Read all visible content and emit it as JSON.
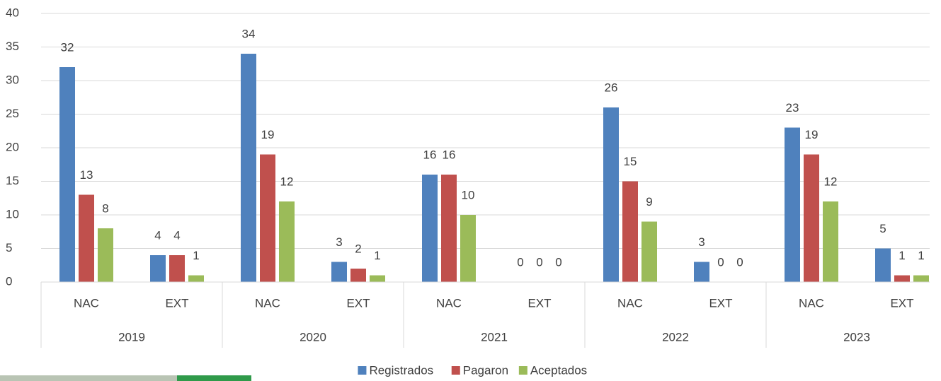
{
  "chart_data": {
    "type": "bar",
    "categories": [
      "NAC",
      "EXT",
      "NAC",
      "EXT",
      "NAC",
      "EXT",
      "NAC",
      "EXT",
      "NAC",
      "EXT"
    ],
    "groups": [
      "2019",
      "2020",
      "2021",
      "2022",
      "2023"
    ],
    "series": [
      {
        "name": "Registrados",
        "color": "#4f81bd",
        "values": [
          32,
          4,
          34,
          3,
          16,
          0,
          26,
          3,
          23,
          5
        ]
      },
      {
        "name": "Pagaron",
        "color": "#c0504d",
        "values": [
          13,
          4,
          19,
          2,
          16,
          0,
          15,
          0,
          19,
          1
        ]
      },
      {
        "name": "Aceptados",
        "color": "#9bbb59",
        "values": [
          8,
          1,
          12,
          1,
          10,
          0,
          9,
          0,
          12,
          1
        ]
      }
    ],
    "ylim": [
      0,
      40
    ],
    "yticks": [
      0,
      5,
      10,
      15,
      20,
      25,
      30,
      35,
      40
    ],
    "grid": true,
    "legend": "bottom"
  }
}
